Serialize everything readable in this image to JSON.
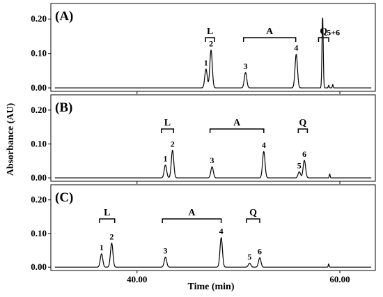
{
  "chart_data": {
    "type": "line",
    "xlabel": "Time (min)",
    "ylabel": "Absorbance (AU)",
    "xlim": [
      31.5,
      63.5
    ],
    "x_ticks": [
      40,
      60
    ],
    "x_tick_labels": [
      "40.00",
      "60.00"
    ],
    "y_ticks": [
      0.0,
      0.1,
      0.2
    ],
    "y_tick_labels": [
      "0.00",
      "0.10",
      "0.20"
    ],
    "ylim": [
      -0.01,
      0.245
    ],
    "panels": [
      {
        "label": "(A)",
        "baseline": 0.0,
        "peaks": [
          {
            "label": "1",
            "x": 46.8,
            "y": 0.055
          },
          {
            "label": "2",
            "x": 47.3,
            "y": 0.11
          },
          {
            "label": "3",
            "x": 50.7,
            "y": 0.045
          },
          {
            "label": "4",
            "x": 55.7,
            "y": 0.098
          },
          {
            "label": "5+6",
            "x": 58.3,
            "y": 0.21
          }
        ],
        "minor_peaks": [
          {
            "x": 58.9,
            "y": 0.008
          },
          {
            "x": 59.3,
            "y": 0.01
          }
        ],
        "groups": [
          {
            "label": "L",
            "x_start": 46.75,
            "x_end": 47.65
          },
          {
            "label": "A",
            "x_start": 50.5,
            "x_end": 55.65
          },
          {
            "label": "Q",
            "x_start": 57.9,
            "x_end": 58.9
          }
        ]
      },
      {
        "label": "(B)",
        "baseline": 0.0,
        "peaks": [
          {
            "label": "1",
            "x": 42.8,
            "y": 0.038
          },
          {
            "label": "2",
            "x": 43.5,
            "y": 0.082
          },
          {
            "label": "3",
            "x": 47.4,
            "y": 0.033
          },
          {
            "label": "4",
            "x": 52.5,
            "y": 0.078
          },
          {
            "label": "5",
            "x": 56.0,
            "y": 0.018
          },
          {
            "label": "6",
            "x": 56.5,
            "y": 0.052
          }
        ],
        "minor_peaks": [
          {
            "x": 59.0,
            "y": 0.012
          }
        ],
        "groups": [
          {
            "label": "L",
            "x_start": 42.4,
            "x_end": 43.6
          },
          {
            "label": "A",
            "x_start": 47.2,
            "x_end": 52.5
          },
          {
            "label": "Q",
            "x_start": 55.9,
            "x_end": 56.8
          }
        ]
      },
      {
        "label": "(C)",
        "baseline": 0.0,
        "peaks": [
          {
            "label": "1",
            "x": 36.5,
            "y": 0.04
          },
          {
            "label": "2",
            "x": 37.5,
            "y": 0.072
          },
          {
            "label": "3",
            "x": 42.8,
            "y": 0.03
          },
          {
            "label": "4",
            "x": 48.3,
            "y": 0.088
          },
          {
            "label": "5",
            "x": 51.1,
            "y": 0.012
          },
          {
            "label": "6",
            "x": 52.1,
            "y": 0.028
          }
        ],
        "minor_peaks": [
          {
            "x": 58.9,
            "y": 0.01
          }
        ],
        "groups": [
          {
            "label": "L",
            "x_start": 36.3,
            "x_end": 37.8
          },
          {
            "label": "A",
            "x_start": 42.5,
            "x_end": 48.3
          },
          {
            "label": "Q",
            "x_start": 50.8,
            "x_end": 52.1
          }
        ]
      }
    ]
  }
}
